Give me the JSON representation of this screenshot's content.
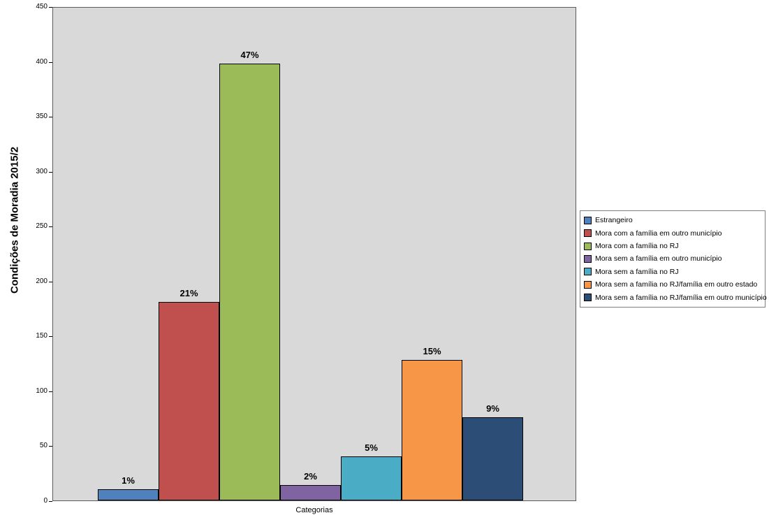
{
  "chart_data": {
    "type": "bar",
    "title": "Condições de Moradia 2015/2",
    "xlabel": "Categorias",
    "ylabel": "",
    "ylim": [
      0,
      450
    ],
    "yticks": [
      0,
      50,
      100,
      150,
      200,
      250,
      300,
      350,
      400,
      450
    ],
    "grid": false,
    "legend_position": "right",
    "plot_background": "#d9d9d9",
    "series": [
      {
        "name": "Estrangeiro",
        "value": 10,
        "label": "1%",
        "color": "#4f81bd"
      },
      {
        "name": "Mora com a família em outro município",
        "value": 181,
        "label": "21%",
        "color": "#c0504d"
      },
      {
        "name": "Mora com a família no RJ",
        "value": 398,
        "label": "47%",
        "color": "#9bbb59"
      },
      {
        "name": "Mora sem a família em outro município",
        "value": 14,
        "label": "2%",
        "color": "#8064a2"
      },
      {
        "name": "Mora sem a família no RJ",
        "value": 40,
        "label": "5%",
        "color": "#4bacc6"
      },
      {
        "name": "Mora sem a família no RJ/família em outro estado",
        "value": 128,
        "label": "15%",
        "color": "#f79646"
      },
      {
        "name": "Mora sem a família no RJ/família em outro município",
        "value": 76,
        "label": "9%",
        "color": "#2c4d75"
      }
    ]
  }
}
